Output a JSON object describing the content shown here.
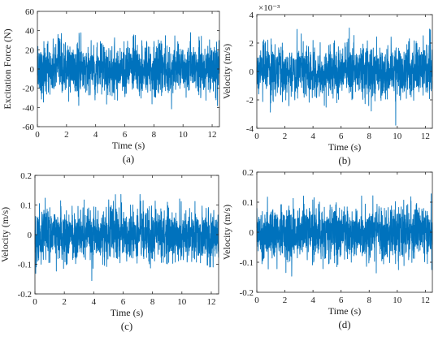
{
  "colors": {
    "signal": "#0072bd",
    "axis": "#262626"
  },
  "chart_data": [
    {
      "type": "line",
      "panel": "a",
      "caption": "(a)",
      "xlabel": "Time (s)",
      "ylabel": "Excitation Force (N)",
      "exponent": "",
      "xlim": [
        0,
        12.5
      ],
      "ylim": [
        -60,
        60
      ],
      "xticks": [
        0,
        2,
        4,
        6,
        8,
        10,
        12
      ],
      "yticks": [
        -60,
        -40,
        -20,
        0,
        20,
        40,
        60
      ],
      "ytick_labels": [
        "-60",
        "-40",
        "-20",
        "0",
        "20",
        "40",
        "60"
      ],
      "envelope": 48
    },
    {
      "type": "line",
      "panel": "b",
      "caption": "(b)",
      "xlabel": "Time (s)",
      "ylabel": "Velocity (m/s)",
      "exponent": "×10⁻³",
      "xlim": [
        0,
        12.5
      ],
      "ylim": [
        -4,
        4
      ],
      "xticks": [
        0,
        2,
        4,
        6,
        8,
        10,
        12
      ],
      "yticks": [
        -4,
        -2,
        0,
        2,
        4
      ],
      "ytick_labels": [
        "-4",
        "-2",
        "0",
        "2",
        "4"
      ],
      "envelope": 3.8
    },
    {
      "type": "line",
      "panel": "c",
      "caption": "(c)",
      "xlabel": "Time (s)",
      "ylabel": "Velocity (m/s)",
      "exponent": "",
      "xlim": [
        0,
        12.5
      ],
      "ylim": [
        -0.2,
        0.2
      ],
      "xticks": [
        0,
        2,
        4,
        6,
        8,
        10,
        12
      ],
      "yticks": [
        -0.2,
        -0.1,
        0,
        0.1,
        0.2
      ],
      "ytick_labels": [
        "-0.2",
        "-0.1",
        "0",
        "0.1",
        "0.2"
      ],
      "envelope": 0.16
    },
    {
      "type": "line",
      "panel": "d",
      "caption": "(d)",
      "xlabel": "Time (s)",
      "ylabel": "Velocity (m/s)",
      "exponent": "",
      "xlim": [
        0,
        12.5
      ],
      "ylim": [
        -0.2,
        0.2
      ],
      "xticks": [
        0,
        2,
        4,
        6,
        8,
        10,
        12
      ],
      "yticks": [
        -0.2,
        -0.1,
        0,
        0.1,
        0.2
      ],
      "ytick_labels": [
        "-0.2",
        "-0.1",
        "0",
        "0.1",
        "0.2"
      ],
      "envelope": 0.16
    }
  ]
}
